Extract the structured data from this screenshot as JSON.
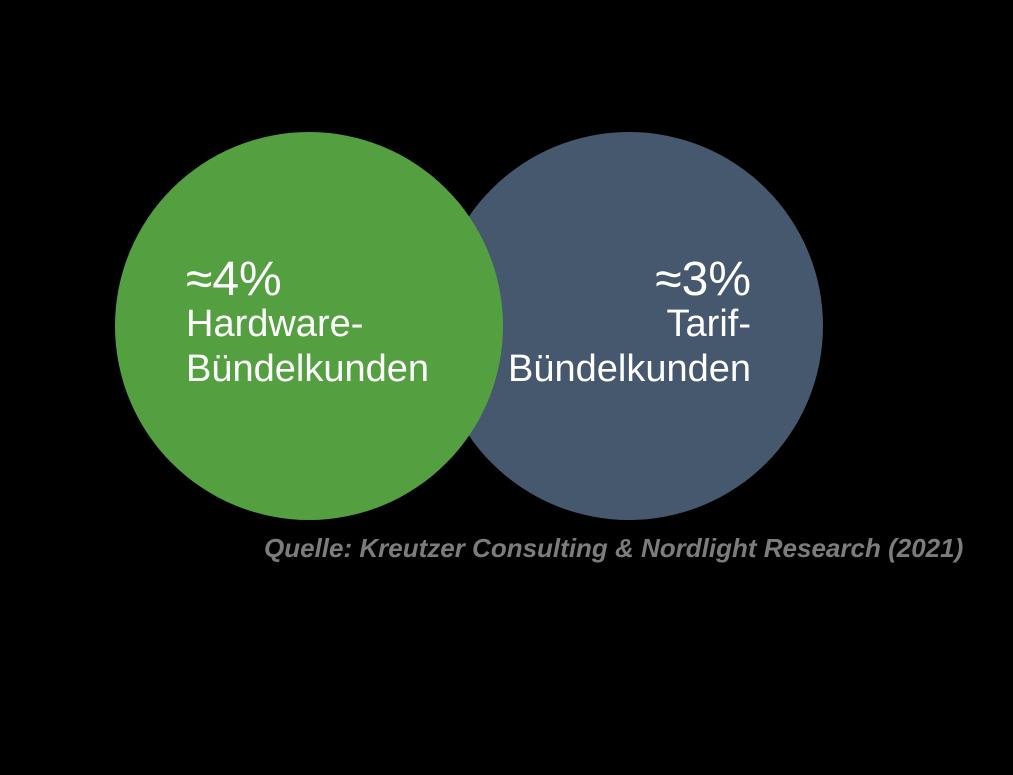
{
  "background_color": "#000000",
  "chart_data": {
    "type": "venn",
    "series": [
      {
        "name": "Hardware-Bündelkunden",
        "value": 4,
        "value_label": "≈4%",
        "color": "#54A041",
        "text_color": "#FFFFFF",
        "position": "left",
        "z_order": "front"
      },
      {
        "name": "Tarif-Bündelkunden",
        "value": 3,
        "value_label": "≈3%",
        "color": "#45586E",
        "text_color": "#FFFFFF",
        "position": "right",
        "z_order": "back"
      }
    ],
    "overlap": true,
    "legend_position": "none",
    "source": "Quelle: Kreutzer Consulting & Nordlight Research (2021)"
  },
  "left_circle": {
    "value": "≈4%",
    "line1": "Hardware-",
    "line2": "Bündelkunden",
    "color": "#54A041"
  },
  "right_circle": {
    "value": "≈3%",
    "line1": "Tarif-",
    "line2": "Bündelkunden",
    "color": "#45586E"
  },
  "source": {
    "text": "Quelle: Kreutzer Consulting & Nordlight Research (2021)",
    "color": "#7C7C7C"
  }
}
